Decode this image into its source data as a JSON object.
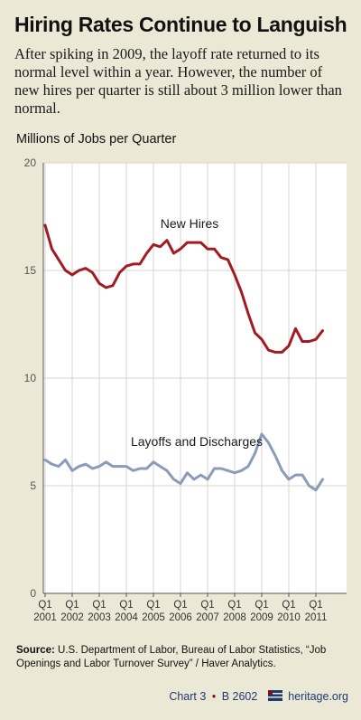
{
  "header": {
    "title": "Hiring Rates Continue to Languish",
    "subtitle": "After spiking in 2009, the layoff rate returned to its normal level within a year. However, the number of new hires per quarter is still about 3 million lower than normal."
  },
  "chart_data": {
    "type": "line",
    "ylabel": "Millions of Jobs per Quarter",
    "xlabel": "",
    "ylim": [
      0,
      20
    ],
    "y_ticks": [
      0,
      5,
      10,
      15,
      20
    ],
    "x_tick_labels": [
      {
        "q": "Q1",
        "year": "2001"
      },
      {
        "q": "Q1",
        "year": "2002"
      },
      {
        "q": "Q1",
        "year": "2003"
      },
      {
        "q": "Q1",
        "year": "2004"
      },
      {
        "q": "Q1",
        "year": "2005"
      },
      {
        "q": "Q1",
        "year": "2006"
      },
      {
        "q": "Q1",
        "year": "2007"
      },
      {
        "q": "Q1",
        "year": "2008"
      },
      {
        "q": "Q1",
        "year": "2009"
      },
      {
        "q": "Q1",
        "year": "2010"
      },
      {
        "q": "Q1",
        "year": "2011"
      }
    ],
    "x_start": "2001 Q1",
    "x_end": "2011 Q2",
    "grid": true,
    "series": [
      {
        "name": "New Hires",
        "color": "#a31b22",
        "values": [
          17.1,
          16.0,
          15.5,
          15.0,
          14.8,
          15.0,
          15.1,
          14.9,
          14.4,
          14.2,
          14.3,
          14.9,
          15.2,
          15.3,
          15.3,
          15.8,
          16.2,
          16.1,
          16.4,
          15.8,
          16.0,
          16.3,
          16.3,
          16.3,
          16.0,
          16.0,
          15.6,
          15.5,
          14.8,
          14.0,
          13.0,
          12.1,
          11.8,
          11.3,
          11.2,
          11.2,
          11.5,
          12.3,
          11.7,
          11.7,
          11.8,
          12.2
        ]
      },
      {
        "name": "Layoffs and Discharges",
        "color": "#8a9cb8",
        "values": [
          6.2,
          6.0,
          5.9,
          6.2,
          5.7,
          5.9,
          6.0,
          5.8,
          5.9,
          6.1,
          5.9,
          5.9,
          5.9,
          5.7,
          5.8,
          5.8,
          6.1,
          5.9,
          5.7,
          5.3,
          5.1,
          5.6,
          5.3,
          5.5,
          5.3,
          5.8,
          5.8,
          5.7,
          5.6,
          5.7,
          5.9,
          6.5,
          7.4,
          7.0,
          6.4,
          5.7,
          5.3,
          5.5,
          5.5,
          5.0,
          4.8,
          5.3
        ]
      }
    ]
  },
  "source": {
    "label": "Source:",
    "text": "U.S. Department of Labor, Bureau of Labor Statistics, “Job Openings and Labor Turnover Survey” / Haver Analytics."
  },
  "footer": {
    "chart_ref": "Chart 3",
    "separator": "•",
    "backgrounder": "B 2602",
    "site": "heritage.org"
  }
}
